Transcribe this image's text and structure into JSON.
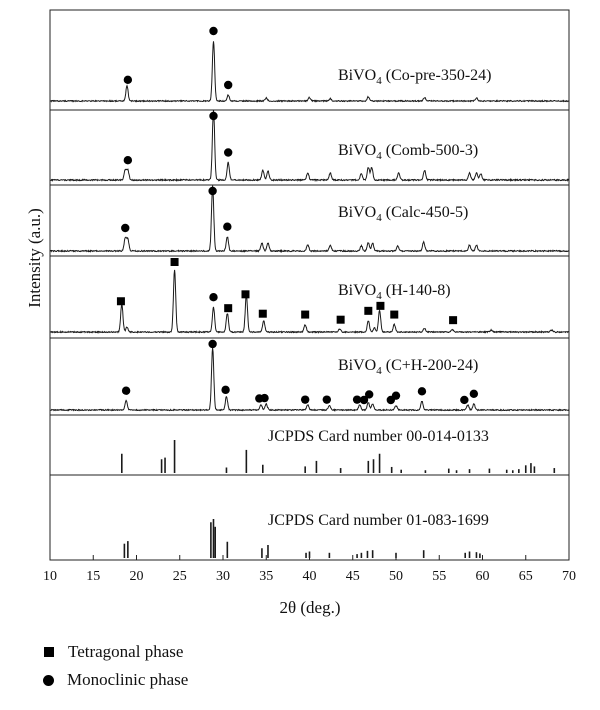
{
  "chart_data": {
    "type": "line",
    "xlabel": "2θ (deg.)",
    "ylabel": "Intensity (a.u.)",
    "xlim": [
      10,
      70
    ],
    "x_ticks": [
      "10",
      "15",
      "20",
      "25",
      "30",
      "35",
      "40",
      "45",
      "50",
      "55",
      "60",
      "65",
      "70"
    ],
    "grid": false,
    "marker_colors": {
      "square": "#000000",
      "circle": "#000000",
      "line": "#1a1a1a"
    },
    "panels": [
      {
        "kind": "pattern",
        "label": "BiVO4 (Co-pre-350-24)",
        "label_main": "BiVO",
        "label_sub": "4",
        "label_rest": " (Co-pre-350-24)",
        "peaks": [
          [
            18.9,
            25
          ],
          [
            28.9,
            100
          ],
          [
            30.6,
            10
          ],
          [
            35.0,
            5
          ],
          [
            40.0,
            6
          ],
          [
            42.4,
            4
          ],
          [
            46.8,
            7
          ],
          [
            53.3,
            6
          ],
          [
            59.3,
            5
          ]
        ],
        "markers": [
          {
            "x": 19.0,
            "shape": "circle"
          },
          {
            "x": 28.9,
            "shape": "circle"
          },
          {
            "x": 30.6,
            "shape": "circle"
          }
        ]
      },
      {
        "kind": "pattern",
        "label": "BiVO4 (Comb-500-3)",
        "label_main": "BiVO",
        "label_sub": "4",
        "label_rest": " (Comb-500-3)",
        "peaks": [
          [
            18.7,
            14
          ],
          [
            19.0,
            14
          ],
          [
            28.9,
            100
          ],
          [
            30.6,
            25
          ],
          [
            34.6,
            14
          ],
          [
            35.2,
            13
          ],
          [
            39.8,
            10
          ],
          [
            42.4,
            10
          ],
          [
            46.0,
            9
          ],
          [
            46.8,
            18
          ],
          [
            47.2,
            18
          ],
          [
            50.3,
            10
          ],
          [
            53.3,
            14
          ],
          [
            58.5,
            10
          ],
          [
            59.3,
            10
          ],
          [
            59.8,
            9
          ]
        ],
        "markers": [
          {
            "x": 19.0,
            "shape": "circle"
          },
          {
            "x": 28.9,
            "shape": "circle"
          },
          {
            "x": 30.6,
            "shape": "circle"
          }
        ]
      },
      {
        "kind": "pattern",
        "label": "BiVO4 (Calc-450-5)",
        "label_main": "BiVO",
        "label_sub": "4",
        "label_rest": " (Calc-450-5)",
        "peaks": [
          [
            18.7,
            20
          ],
          [
            19.0,
            18
          ],
          [
            28.8,
            100
          ],
          [
            30.5,
            22
          ],
          [
            34.5,
            12
          ],
          [
            35.2,
            12
          ],
          [
            39.8,
            10
          ],
          [
            42.4,
            9
          ],
          [
            46.0,
            8
          ],
          [
            46.8,
            13
          ],
          [
            47.3,
            12
          ],
          [
            50.2,
            8
          ],
          [
            53.2,
            14
          ],
          [
            58.5,
            9
          ],
          [
            59.3,
            9
          ]
        ],
        "markers": [
          {
            "x": 18.7,
            "shape": "circle"
          },
          {
            "x": 28.8,
            "shape": "circle"
          },
          {
            "x": 30.5,
            "shape": "circle"
          }
        ]
      },
      {
        "kind": "pattern",
        "label": "BiVO4 (H-140-8)",
        "label_main": "BiVO",
        "label_sub": "4",
        "label_rest": " (H-140-8)",
        "peaks": [
          [
            18.3,
            45
          ],
          [
            18.9,
            8
          ],
          [
            24.4,
            100
          ],
          [
            28.9,
            40
          ],
          [
            30.5,
            30
          ],
          [
            32.7,
            60
          ],
          [
            34.7,
            18
          ],
          [
            39.5,
            12
          ],
          [
            43.5,
            5
          ],
          [
            46.8,
            18
          ],
          [
            47.5,
            7
          ],
          [
            48.1,
            35
          ],
          [
            49.8,
            12
          ],
          [
            53.3,
            6
          ],
          [
            56.5,
            4
          ],
          [
            61.0,
            3
          ],
          [
            68.0,
            3
          ]
        ],
        "markers": [
          {
            "x": 18.2,
            "shape": "square"
          },
          {
            "x": 24.4,
            "shape": "square"
          },
          {
            "x": 32.6,
            "shape": "square"
          },
          {
            "x": 30.6,
            "shape": "square"
          },
          {
            "x": 34.6,
            "shape": "square"
          },
          {
            "x": 39.5,
            "shape": "square"
          },
          {
            "x": 43.6,
            "shape": "square"
          },
          {
            "x": 46.8,
            "shape": "square"
          },
          {
            "x": 48.2,
            "shape": "square"
          },
          {
            "x": 49.8,
            "shape": "square"
          },
          {
            "x": 56.6,
            "shape": "square"
          },
          {
            "x": 28.9,
            "shape": "circle"
          }
        ]
      },
      {
        "kind": "pattern",
        "label": "BiVO4 (C+H-200-24)",
        "label_main": "BiVO",
        "label_sub": "4",
        "label_rest": " (C+H-200-24)",
        "peaks": [
          [
            18.8,
            15
          ],
          [
            28.8,
            100
          ],
          [
            30.4,
            22
          ],
          [
            34.4,
            8
          ],
          [
            35.0,
            10
          ],
          [
            39.8,
            8
          ],
          [
            42.3,
            8
          ],
          [
            45.8,
            8
          ],
          [
            46.8,
            12
          ],
          [
            47.3,
            10
          ],
          [
            50.0,
            7
          ],
          [
            53.0,
            14
          ],
          [
            58.3,
            8
          ],
          [
            59.0,
            10
          ]
        ],
        "markers": [
          {
            "x": 18.8,
            "shape": "circle"
          },
          {
            "x": 28.8,
            "shape": "circle"
          },
          {
            "x": 30.3,
            "shape": "circle"
          },
          {
            "x": 34.2,
            "shape": "circle"
          },
          {
            "x": 34.8,
            "shape": "circle"
          },
          {
            "x": 39.5,
            "shape": "circle"
          },
          {
            "x": 42.0,
            "shape": "circle"
          },
          {
            "x": 45.5,
            "shape": "circle"
          },
          {
            "x": 46.3,
            "shape": "circle"
          },
          {
            "x": 46.9,
            "shape": "circle"
          },
          {
            "x": 49.4,
            "shape": "circle"
          },
          {
            "x": 50.0,
            "shape": "circle"
          },
          {
            "x": 53.0,
            "shape": "circle"
          },
          {
            "x": 57.9,
            "shape": "circle"
          },
          {
            "x": 59.0,
            "shape": "circle"
          }
        ]
      },
      {
        "kind": "card",
        "label": "JCPDS Card number 00-014-0133",
        "sticks": [
          [
            18.3,
            35
          ],
          [
            22.9,
            25
          ],
          [
            23.3,
            28
          ],
          [
            24.4,
            60
          ],
          [
            30.4,
            10
          ],
          [
            32.7,
            42
          ],
          [
            34.6,
            15
          ],
          [
            39.5,
            12
          ],
          [
            40.8,
            22
          ],
          [
            43.6,
            9
          ],
          [
            46.8,
            22
          ],
          [
            47.4,
            25
          ],
          [
            48.1,
            35
          ],
          [
            49.5,
            11
          ],
          [
            50.6,
            6
          ],
          [
            53.4,
            5
          ],
          [
            56.1,
            8
          ],
          [
            57.0,
            5
          ],
          [
            58.5,
            7
          ],
          [
            60.8,
            8
          ],
          [
            62.8,
            6
          ],
          [
            63.5,
            5
          ],
          [
            64.2,
            7
          ],
          [
            65.0,
            14
          ],
          [
            65.6,
            18
          ],
          [
            66.0,
            12
          ],
          [
            68.3,
            9
          ]
        ]
      },
      {
        "kind": "card",
        "label": "JCPDS Card number 01-083-1699",
        "sticks": [
          [
            18.6,
            22
          ],
          [
            19.0,
            26
          ],
          [
            28.6,
            55
          ],
          [
            28.9,
            60
          ],
          [
            29.1,
            48
          ],
          [
            30.5,
            25
          ],
          [
            34.5,
            15
          ],
          [
            35.2,
            20
          ],
          [
            39.6,
            8
          ],
          [
            40.0,
            10
          ],
          [
            42.3,
            8
          ],
          [
            45.5,
            6
          ],
          [
            46.0,
            8
          ],
          [
            46.7,
            11
          ],
          [
            47.3,
            12
          ],
          [
            50.0,
            8
          ],
          [
            53.2,
            12
          ],
          [
            58.0,
            8
          ],
          [
            58.5,
            10
          ],
          [
            59.3,
            9
          ],
          [
            59.7,
            7
          ]
        ]
      }
    ],
    "legend": [
      {
        "symbol": "square",
        "label": "Tetragonal phase"
      },
      {
        "symbol": "circle",
        "label": "Monoclinic phase"
      }
    ]
  }
}
